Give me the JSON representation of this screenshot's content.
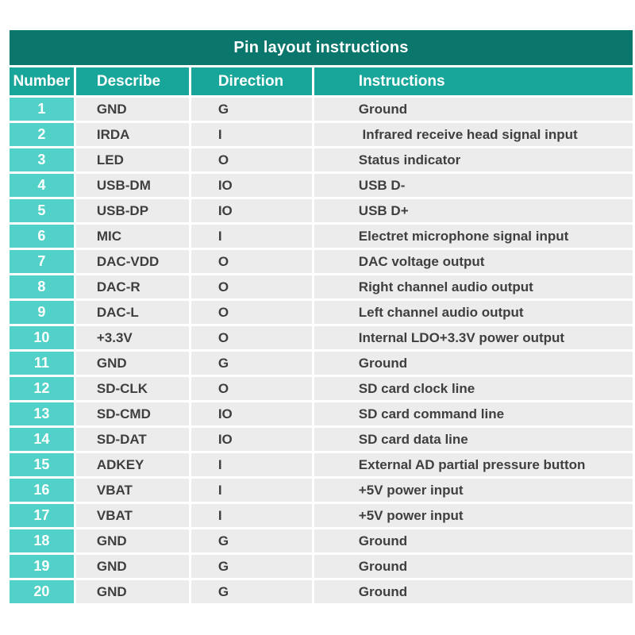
{
  "table": {
    "title": "Pin layout instructions",
    "columns": {
      "number": "Number",
      "describe": "Describe",
      "direction": "Direction",
      "instructions": "Instructions"
    },
    "rows": [
      {
        "number": "1",
        "describe": "GND",
        "direction": "G",
        "instructions": "Ground"
      },
      {
        "number": "2",
        "describe": "IRDA",
        "direction": "I",
        "instructions": " Infrared receive head signal input"
      },
      {
        "number": "3",
        "describe": "LED",
        "direction": "O",
        "instructions": "Status indicator"
      },
      {
        "number": "4",
        "describe": "USB-DM",
        "direction": "IO",
        "instructions": "USB D-"
      },
      {
        "number": "5",
        "describe": "USB-DP",
        "direction": "IO",
        "instructions": "USB D+"
      },
      {
        "number": "6",
        "describe": "MIC",
        "direction": "I",
        "instructions": "Electret microphone signal input"
      },
      {
        "number": "7",
        "describe": "DAC-VDD",
        "direction": "O",
        "instructions": "DAC voltage output"
      },
      {
        "number": "8",
        "describe": "DAC-R",
        "direction": "O",
        "instructions": "Right channel audio output"
      },
      {
        "number": "9",
        "describe": "DAC-L",
        "direction": "O",
        "instructions": "Left channel audio output"
      },
      {
        "number": "10",
        "describe": "+3.3V",
        "direction": "O",
        "instructions": "Internal LDO+3.3V power output"
      },
      {
        "number": "11",
        "describe": "GND",
        "direction": "G",
        "instructions": "Ground"
      },
      {
        "number": "12",
        "describe": "SD-CLK",
        "direction": "O",
        "instructions": "SD card clock line"
      },
      {
        "number": "13",
        "describe": "SD-CMD",
        "direction": "IO",
        "instructions": "SD card command line"
      },
      {
        "number": "14",
        "describe": "SD-DAT",
        "direction": "IO",
        "instructions": "SD card data line"
      },
      {
        "number": "15",
        "describe": "ADKEY",
        "direction": "I",
        "instructions": "External AD partial pressure button"
      },
      {
        "number": "16",
        "describe": "VBAT",
        "direction": "I",
        "instructions": "+5V power input"
      },
      {
        "number": "17",
        "describe": "VBAT",
        "direction": "I",
        "instructions": "+5V power input"
      },
      {
        "number": "18",
        "describe": "GND",
        "direction": "G",
        "instructions": "Ground"
      },
      {
        "number": "19",
        "describe": "GND",
        "direction": "G",
        "instructions": "Ground"
      },
      {
        "number": "20",
        "describe": "GND",
        "direction": "G",
        "instructions": "Ground"
      }
    ]
  },
  "colors": {
    "title-bg": "#0A766C",
    "header-bg": "#19A69A",
    "number-bg": "#52D1C8",
    "row-bg": "#ECECEC",
    "text-dark": "#3F3F3F"
  }
}
